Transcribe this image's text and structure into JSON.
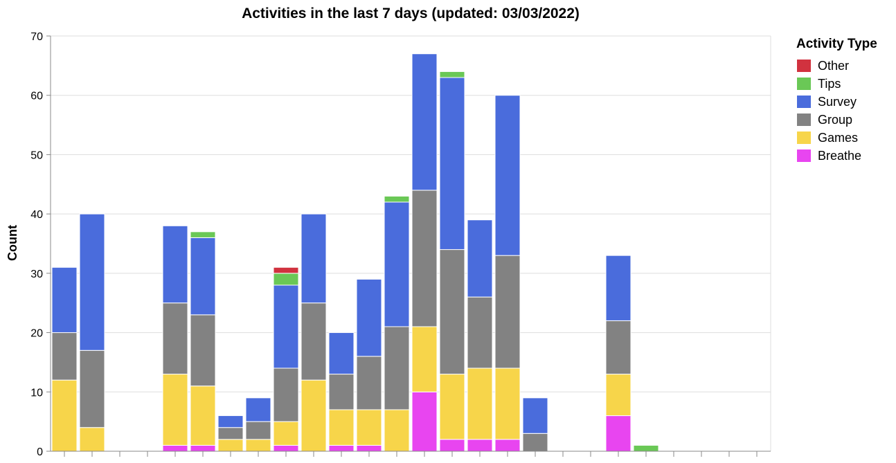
{
  "chart_data": {
    "type": "bar",
    "stacked": true,
    "title": "Activities in the last 7 days (updated: 03/03/2022)",
    "xlabel": "",
    "ylabel": "Count",
    "ylim": [
      0,
      70
    ],
    "yticks": [
      0,
      10,
      20,
      30,
      40,
      50,
      60,
      70
    ],
    "grid": true,
    "legend": {
      "title": "Activity Type",
      "placement": "right"
    },
    "bar_count": 26,
    "series": [
      {
        "name": "Other",
        "color": "#d1323f",
        "values": [
          0,
          0,
          0,
          0,
          0,
          0,
          0,
          0,
          1,
          0,
          0,
          0,
          0,
          0,
          0,
          0,
          0,
          0,
          0,
          0,
          0,
          0,
          0,
          0,
          0,
          0
        ]
      },
      {
        "name": "Tips",
        "color": "#6ac856",
        "values": [
          0,
          0,
          0,
          0,
          0,
          1,
          0,
          0,
          2,
          0,
          0,
          0,
          1,
          0,
          1,
          0,
          0,
          0,
          0,
          0,
          0,
          1,
          0,
          0,
          0,
          0
        ]
      },
      {
        "name": "Survey",
        "color": "#4a6cdc",
        "values": [
          11,
          23,
          0,
          0,
          13,
          13,
          2,
          4,
          14,
          15,
          7,
          13,
          21,
          23,
          29,
          13,
          27,
          6,
          0,
          0,
          11,
          0,
          0,
          0,
          0,
          0
        ]
      },
      {
        "name": "Group",
        "color": "#828282",
        "values": [
          8,
          13,
          0,
          0,
          12,
          12,
          2,
          3,
          9,
          13,
          6,
          9,
          14,
          23,
          21,
          12,
          19,
          3,
          0,
          0,
          9,
          0,
          0,
          0,
          0,
          0
        ]
      },
      {
        "name": "Games",
        "color": "#f7d54a",
        "values": [
          12,
          4,
          0,
          0,
          12,
          10,
          2,
          2,
          4,
          12,
          6,
          6,
          7,
          11,
          11,
          12,
          12,
          0,
          0,
          0,
          7,
          0,
          0,
          0,
          0,
          0
        ]
      },
      {
        "name": "Breathe",
        "color": "#e845f0",
        "values": [
          0,
          0,
          0,
          0,
          1,
          1,
          0,
          0,
          1,
          0,
          1,
          1,
          0,
          10,
          2,
          2,
          2,
          0,
          0,
          0,
          6,
          0,
          0,
          0,
          0,
          0
        ]
      }
    ]
  }
}
